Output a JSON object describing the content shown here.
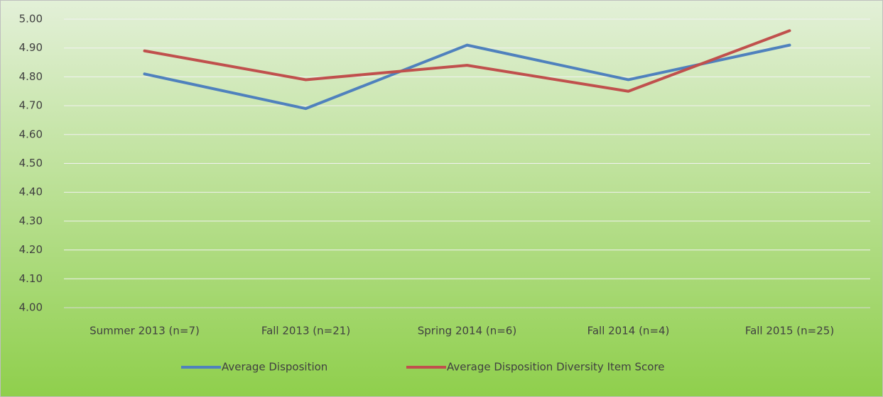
{
  "chart_data": {
    "type": "line",
    "categories": [
      "Summer 2013 (n=7)",
      "Fall 2013 (n=21)",
      "Spring 2014 (n=6)",
      "Fall 2014 (n=4)",
      "Fall 2015 (n=25)"
    ],
    "series": [
      {
        "name": "Average Disposition",
        "color": "#4f81bd",
        "values": [
          4.81,
          4.69,
          4.91,
          4.79,
          4.91
        ]
      },
      {
        "name": "Average Disposition Diversity Item Score",
        "color": "#c0504d",
        "values": [
          4.89,
          4.79,
          4.84,
          4.75,
          4.96
        ]
      }
    ],
    "ylim": [
      4.0,
      5.0
    ],
    "yticks": [
      {
        "value": 4.0,
        "label": "4.00"
      },
      {
        "value": 4.1,
        "label": "4.10"
      },
      {
        "value": 4.2,
        "label": "4.20"
      },
      {
        "value": 4.3,
        "label": "4.30"
      },
      {
        "value": 4.4,
        "label": "4.40"
      },
      {
        "value": 4.5,
        "label": "4.50"
      },
      {
        "value": 4.6,
        "label": "4.60"
      },
      {
        "value": 4.7,
        "label": "4.70"
      },
      {
        "value": 4.8,
        "label": "4.80"
      },
      {
        "value": 4.9,
        "label": "4.90"
      },
      {
        "value": 5.0,
        "label": "5.00"
      }
    ],
    "grid": true,
    "legend": "bottom"
  }
}
